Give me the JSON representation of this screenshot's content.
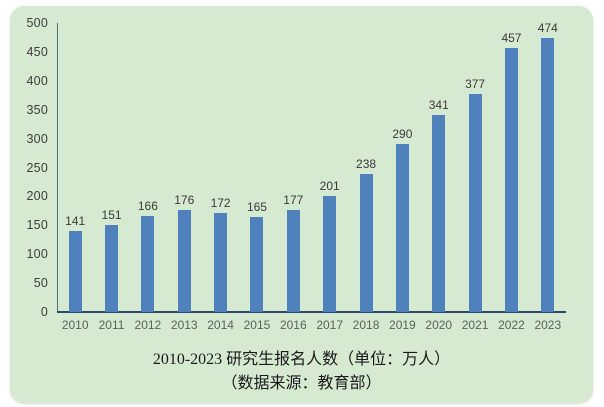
{
  "chart_data": {
    "type": "bar",
    "categories": [
      "2010",
      "2011",
      "2012",
      "2013",
      "2014",
      "2015",
      "2016",
      "2017",
      "2018",
      "2019",
      "2020",
      "2021",
      "2022",
      "2023"
    ],
    "values": [
      141,
      151,
      166,
      176,
      172,
      165,
      177,
      201,
      238,
      290,
      341,
      377,
      457,
      474
    ],
    "title": "2010-2023 研究生报名人数（单位：万人）",
    "subtitle": "（数据来源：教育部）",
    "xlabel": "",
    "ylabel": "",
    "ylim": [
      0,
      500
    ],
    "yticks": [
      0,
      50,
      100,
      150,
      200,
      250,
      300,
      350,
      400,
      450,
      500
    ],
    "grid": false,
    "legend": null,
    "colors": {
      "page_background": "#ffffff",
      "panel_background": "#d6e9d1",
      "bar": "#4f81bd",
      "x_axis_line": "#2c4a6e",
      "y_axis_line": "#4a6d7c",
      "y_tick_label": "#3d3d3d",
      "x_tick_label": "#57645a",
      "value_label": "#3a3a3a",
      "title_text": "#1a1a1a"
    }
  }
}
